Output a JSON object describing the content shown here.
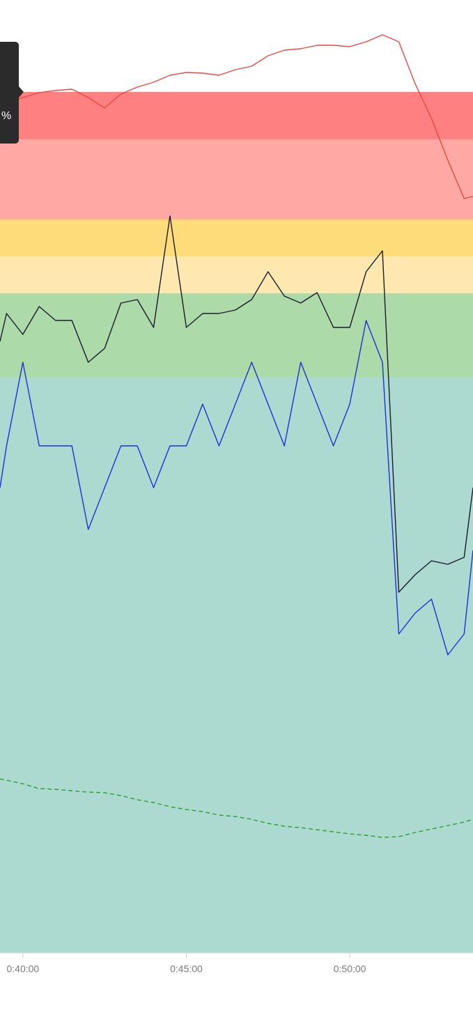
{
  "chart_data": {
    "type": "line",
    "xlim": [
      39.3,
      53.77
    ],
    "ylim": [
      0,
      1368
    ],
    "xticks": [
      {
        "value": 40,
        "label": "0:40:00"
      },
      {
        "value": 45,
        "label": "0:45:00"
      },
      {
        "value": 50,
        "label": "0:50:00"
      }
    ],
    "bands": [
      {
        "from": 1236,
        "to": 1168,
        "color": "#ff8080"
      },
      {
        "from": 1168,
        "to": 1053,
        "color": "#ffa8a4"
      },
      {
        "from": 1053,
        "to": 1000,
        "color": "#ffdc7a"
      },
      {
        "from": 1000,
        "to": 947,
        "color": "#fee8b0"
      },
      {
        "from": 947,
        "to": 826,
        "color": "#acdaa8"
      },
      {
        "from": 826,
        "to": 0,
        "color": "#addad0"
      }
    ],
    "x": [
      39.3,
      39.5,
      40,
      40.5,
      41,
      41.5,
      42,
      42.5,
      43,
      43.5,
      44,
      44.5,
      45,
      45.5,
      46,
      46.5,
      47,
      47.5,
      48,
      48.5,
      49,
      49.5,
      50,
      50.5,
      51,
      51.5,
      52,
      52.5,
      53,
      53.5,
      53.77
    ],
    "series": [
      {
        "color": "#e8483f",
        "values": [
          1220,
          1220,
          1228,
          1235,
          1238,
          1240,
          1228,
          1213,
          1233,
          1243,
          1250,
          1260,
          1264,
          1263,
          1260,
          1268,
          1273,
          1288,
          1296,
          1298,
          1303,
          1303,
          1301,
          1308,
          1318,
          1308,
          1248,
          1198,
          1138,
          1083,
          1086
        ]
      },
      {
        "color": "#1a1a2e",
        "values": [
          878,
          918,
          888,
          928,
          908,
          908,
          848,
          868,
          933,
          938,
          898,
          1058,
          898,
          918,
          918,
          923,
          938,
          978,
          943,
          933,
          948,
          898,
          898,
          978,
          1008,
          518,
          543,
          563,
          558,
          568,
          668
        ]
      },
      {
        "color": "#1f2fd6",
        "values": [
          668,
          728,
          848,
          728,
          728,
          728,
          608,
          668,
          728,
          728,
          668,
          728,
          728,
          788,
          728,
          788,
          848,
          788,
          728,
          848,
          788,
          728,
          788,
          908,
          848,
          458,
          488,
          508,
          428,
          458,
          578
        ]
      },
      {
        "color": "#2ca02c",
        "dashed": true,
        "values": [
          250,
          248,
          243,
          236,
          235,
          233,
          231,
          230,
          226,
          220,
          216,
          210,
          206,
          203,
          198,
          196,
          192,
          186,
          182,
          180,
          177,
          174,
          171,
          169,
          166,
          167,
          173,
          178,
          183,
          188,
          192
        ]
      }
    ]
  },
  "tooltip": {
    "text": "%"
  }
}
